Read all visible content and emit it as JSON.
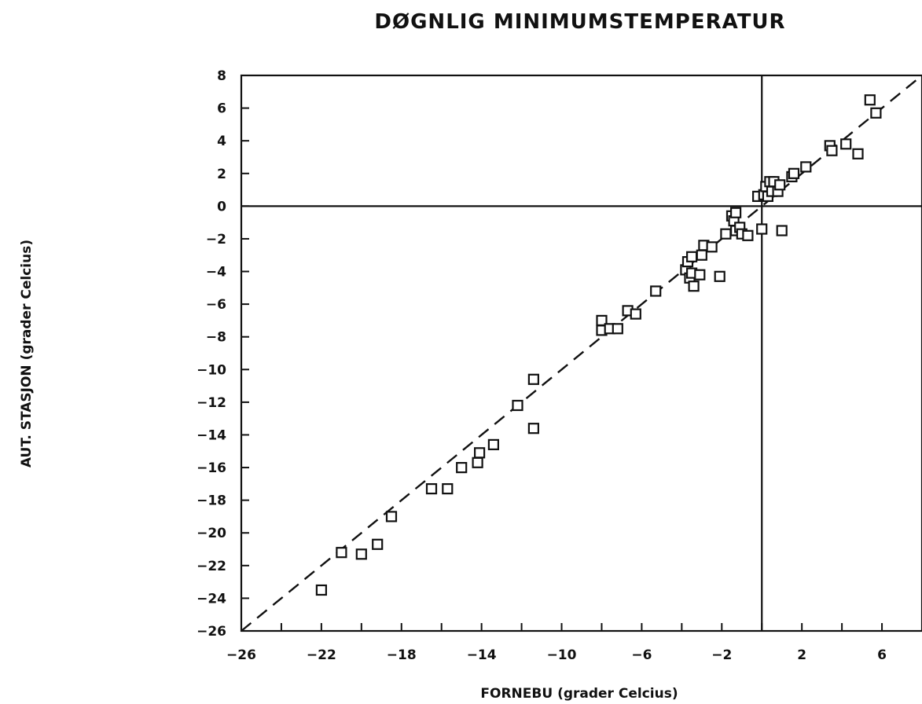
{
  "chart_data": {
    "type": "scatter",
    "title": "DØGNLIG MINIMUMSTEMPERATUR",
    "xlabel": "FORNEBU (grader Celcius)",
    "ylabel": "AUT. STASJON (grader Celcius)",
    "xlim": [
      -26,
      8
    ],
    "ylim": [
      -26,
      8
    ],
    "x_ticks": [
      -26,
      -22,
      -18,
      -14,
      -10,
      -6,
      -2,
      2,
      6
    ],
    "y_ticks": [
      8,
      6,
      4,
      2,
      0,
      -2,
      -4,
      -6,
      -8,
      -10,
      -12,
      -14,
      -16,
      -18,
      -20,
      -22,
      -24,
      -26
    ],
    "reference_lines": {
      "x": 0,
      "y": 0,
      "diagonal": "y = x (dashed)"
    },
    "grid": false,
    "marker": "open square",
    "series": [
      {
        "points": [
          [
            -22.0,
            -23.5
          ],
          [
            -21.0,
            -21.2
          ],
          [
            -20.0,
            -21.3
          ],
          [
            -19.2,
            -20.7
          ],
          [
            -18.5,
            -19.0
          ],
          [
            -16.5,
            -17.3
          ],
          [
            -15.7,
            -17.3
          ],
          [
            -15.0,
            -16.0
          ],
          [
            -14.2,
            -15.7
          ],
          [
            -14.1,
            -15.1
          ],
          [
            -13.4,
            -14.6
          ],
          [
            -12.2,
            -12.2
          ],
          [
            -11.4,
            -10.6
          ],
          [
            -11.4,
            -13.6
          ],
          [
            -8.0,
            -7.0
          ],
          [
            -8.0,
            -7.6
          ],
          [
            -7.6,
            -7.5
          ],
          [
            -7.2,
            -7.5
          ],
          [
            -6.7,
            -6.4
          ],
          [
            -6.3,
            -6.6
          ],
          [
            -5.3,
            -5.2
          ],
          [
            -3.8,
            -3.9
          ],
          [
            -3.7,
            -3.4
          ],
          [
            -3.6,
            -4.4
          ],
          [
            -3.5,
            -4.1
          ],
          [
            -3.5,
            -3.1
          ],
          [
            -3.4,
            -4.9
          ],
          [
            -3.1,
            -4.2
          ],
          [
            -3.0,
            -3.0
          ],
          [
            -2.9,
            -2.4
          ],
          [
            -2.5,
            -2.5
          ],
          [
            -2.1,
            -4.3
          ],
          [
            -1.8,
            -1.7
          ],
          [
            -1.5,
            -0.6
          ],
          [
            -1.4,
            -0.9
          ],
          [
            -1.3,
            -0.4
          ],
          [
            -1.3,
            -1.5
          ],
          [
            -1.1,
            -1.3
          ],
          [
            -1.0,
            -1.7
          ],
          [
            -0.7,
            -1.8
          ],
          [
            -0.2,
            0.6
          ],
          [
            0.0,
            -1.4
          ],
          [
            0.1,
            0.7
          ],
          [
            0.2,
            1.2
          ],
          [
            0.3,
            0.6
          ],
          [
            0.4,
            1.5
          ],
          [
            0.5,
            0.9
          ],
          [
            0.6,
            1.5
          ],
          [
            0.8,
            0.9
          ],
          [
            0.9,
            1.3
          ],
          [
            1.0,
            -1.5
          ],
          [
            1.5,
            1.8
          ],
          [
            1.6,
            2.0
          ],
          [
            2.2,
            2.4
          ],
          [
            3.4,
            3.7
          ],
          [
            3.5,
            3.4
          ],
          [
            4.2,
            3.8
          ],
          [
            4.8,
            3.2
          ],
          [
            5.4,
            6.5
          ],
          [
            5.7,
            5.7
          ]
        ]
      }
    ]
  }
}
